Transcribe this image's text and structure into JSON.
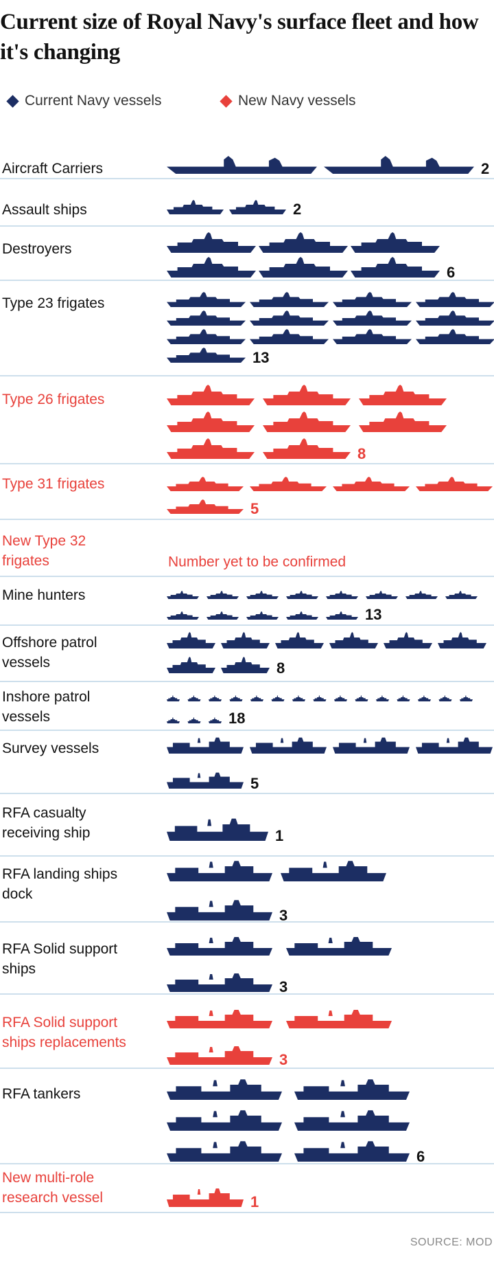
{
  "chart_data": {
    "type": "pictogram",
    "title": "Current size of Royal Navy's surface fleet and how it's changing",
    "categories": [
      "Aircraft Carriers",
      "Assault ships",
      "Destroyers",
      "Type 23 frigates",
      "Type 26 frigates",
      "Type 31 frigates",
      "New Type 32 frigates",
      "Mine hunters",
      "Offshore patrol vessels",
      "Inshore patrol vessels",
      "Survey vessels",
      "RFA casualty receiving ship",
      "RFA landing ships dock",
      "RFA Solid support ships",
      "RFA Solid support ships replacements",
      "RFA tankers",
      "New multi-role research vessel"
    ],
    "series": [
      {
        "name": "Current Navy vessels",
        "color": "#1c2e63",
        "values": [
          2,
          2,
          6,
          13,
          null,
          null,
          null,
          13,
          8,
          18,
          5,
          1,
          3,
          3,
          null,
          6,
          null
        ]
      },
      {
        "name": "New Navy vessels",
        "color": "#e8413b",
        "values": [
          null,
          null,
          null,
          null,
          8,
          5,
          null,
          null,
          null,
          null,
          null,
          null,
          null,
          null,
          3,
          null,
          1
        ]
      }
    ],
    "annotations": [
      {
        "text": "Number yet to be confirmed",
        "category": "New Type 32 frigates",
        "series": "New Navy vessels"
      }
    ],
    "source": "SOURCE: MOD"
  }
}
